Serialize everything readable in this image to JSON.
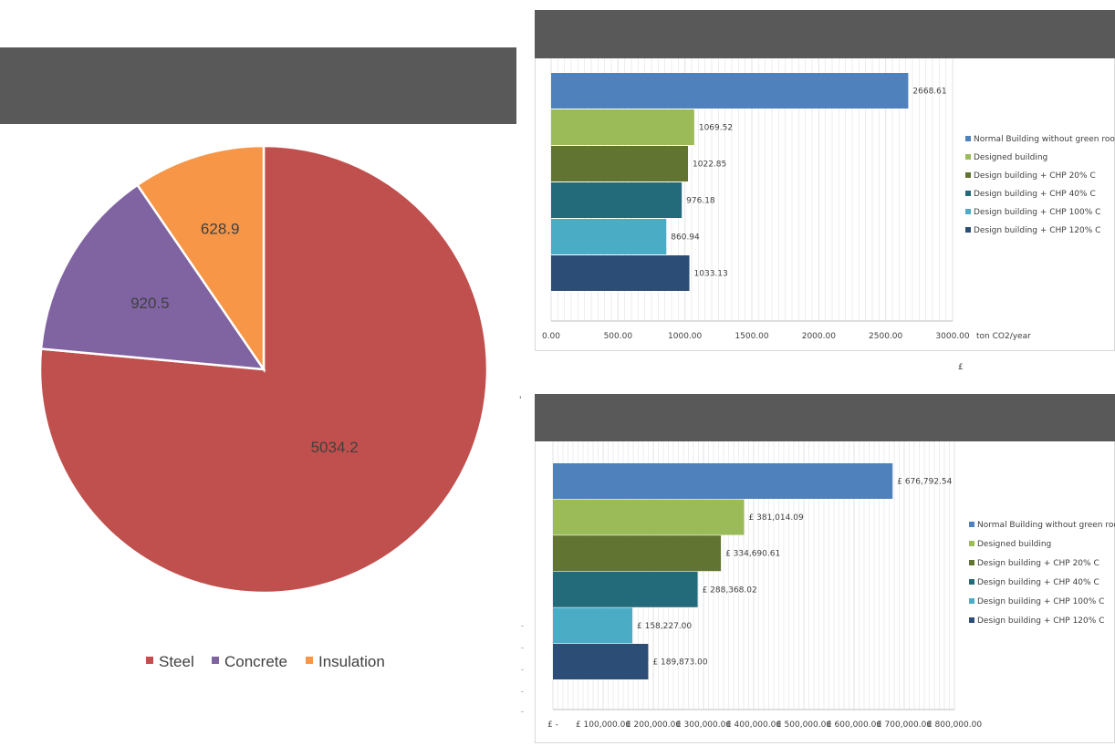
{
  "colors": {
    "header": "#595959",
    "steel": "#c0504d",
    "concrete": "#8064a2",
    "insulation": "#f79646",
    "s_normal": "#4f81bd",
    "s_designed": "#9bbb59",
    "s_chp20": "#627431",
    "s_chp40": "#236a7a",
    "s_chp100": "#4bacc6",
    "s_chp120": "#2c4d75",
    "grid": "#e3e3e3",
    "axis": "#bfbfbf"
  },
  "chart_data": [
    {
      "type": "pie",
      "title": "",
      "categories": [
        "Steel",
        "Concrete",
        "Insulation"
      ],
      "values": [
        5034.2,
        920.5,
        628.9
      ],
      "value_labels": [
        "5034.2",
        "920.5",
        "628.9"
      ],
      "legend": [
        "Steel",
        "Concrete",
        "Insulation"
      ],
      "legend_position": "bottom"
    },
    {
      "type": "bar",
      "orientation": "horizontal",
      "title": "",
      "categories": [
        "Normal Building without green roof",
        "Designed building",
        "Design building + CHP 20% C",
        "Design building + CHP 40% C",
        "Design building + CHP 100% C",
        "Design building + CHP 120% C"
      ],
      "values": [
        2668.61,
        1069.52,
        1022.85,
        976.18,
        860.94,
        1033.13
      ],
      "value_labels": [
        "2668.61",
        "1069.52",
        "1022.85",
        "976.18",
        "860.94",
        "1033.13"
      ],
      "xlim": [
        0,
        3000
      ],
      "x_ticks": [
        "0.00",
        "500.00",
        "1000.00",
        "1500.00",
        "2000.00",
        "2500.00",
        "3000.00"
      ],
      "xlabel": "ton CO2/year",
      "legend": [
        "Normal Building without green roof",
        "Designed building",
        "Design building + CHP 20% C",
        "Design building + CHP 40% C",
        "Design building + CHP 100% C",
        "Design building + CHP 120% C"
      ],
      "legend_position": "right",
      "grid": true
    },
    {
      "type": "bar",
      "orientation": "horizontal",
      "title": "",
      "categories": [
        "Normal Building without green roof",
        "Designed building",
        "Design building + CHP 20% C",
        "Design building + CHP 40% C",
        "Design building + CHP 100% C",
        "Design building + CHP 120% C"
      ],
      "values": [
        676792.54,
        381014.09,
        334690.61,
        288368.02,
        158227.0,
        189873.0
      ],
      "value_labels": [
        "£ 676,792.54",
        "£ 381,014.09",
        "£ 334,690.61",
        "£ 288,368.02",
        "£ 158,227.00",
        "£ 189,873.00"
      ],
      "xlim": [
        0,
        800000
      ],
      "x_ticks": [
        "£ -",
        "£ 100,000.00",
        "£ 200,000.00",
        "£ 300,000.00",
        "£ 400,000.00",
        "£ 500,000.00",
        "£ 600,000.00",
        "£ 700,000.00",
        "£ 800,000.00"
      ],
      "legend": [
        "Normal Building without green roof",
        "Designed building",
        "Design building + CHP 20% C",
        "Design building + CHP 40% C",
        "Design building + CHP 100% C",
        "Design building + CHP 120% C"
      ],
      "legend_position": "right",
      "grid": true
    }
  ],
  "stray_text": {
    "pound_sign": "£",
    "bracket_mark": "'"
  }
}
